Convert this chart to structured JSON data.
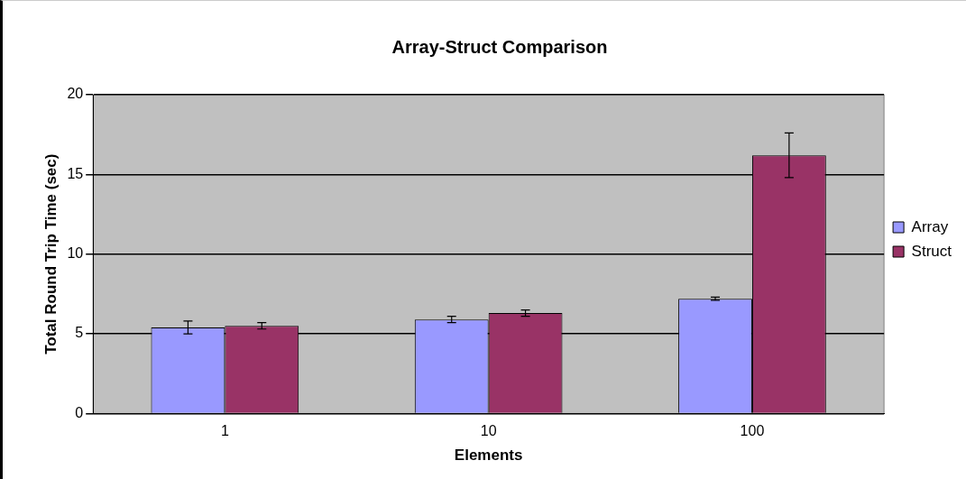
{
  "chart_data": {
    "type": "bar",
    "title": "Array-Struct Comparison",
    "xlabel": "Elements",
    "ylabel": "Total Round Trip Time (sec)",
    "categories": [
      "1",
      "10",
      "100"
    ],
    "series": [
      {
        "name": "Array",
        "color": "#9999ff",
        "values": [
          5.4,
          5.9,
          7.2
        ],
        "errors": [
          0.4,
          0.2,
          0.1
        ]
      },
      {
        "name": "Struct",
        "color": "#993366",
        "values": [
          5.5,
          6.3,
          16.2
        ],
        "errors": [
          0.2,
          0.2,
          1.4
        ]
      }
    ],
    "ylim": [
      0,
      20
    ],
    "yticks": [
      0,
      5,
      10,
      15,
      20
    ],
    "grid": "y",
    "legend": "right"
  }
}
